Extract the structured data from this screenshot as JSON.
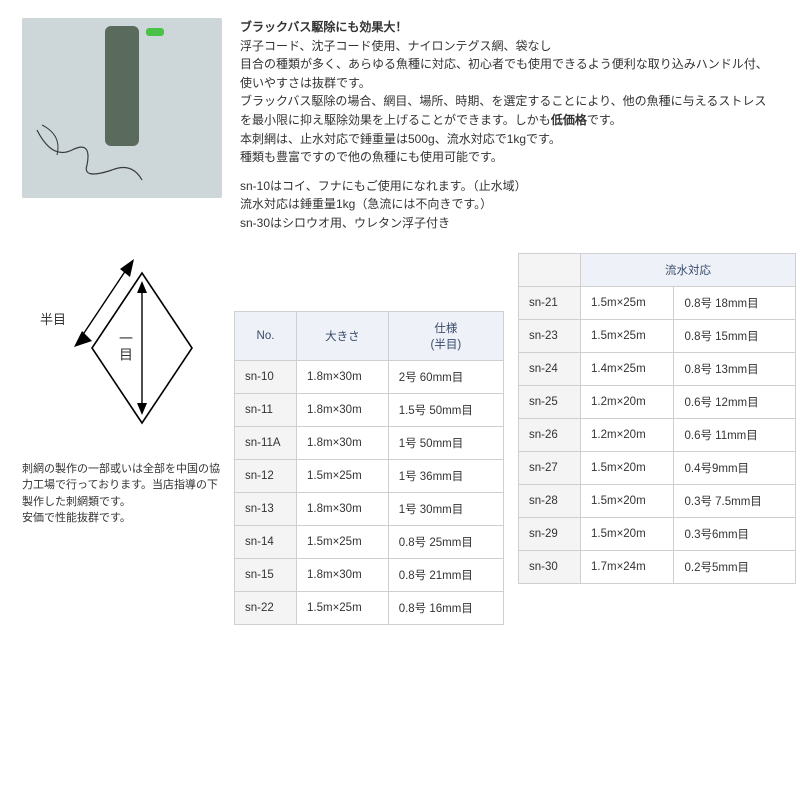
{
  "description": {
    "headline": "ブラックバス駆除にも効果大！",
    "para1": "浮子コード、沈子コード使用、ナイロンテグス網、袋なし\n目合の種類が多く、あらゆる魚種に対応、初心者でも使用できるよう便利な取り込みハンドル付、使いやすさは抜群です。\nブラックバス駆除の場合、網目、場所、時期、を選定することにより、他の魚種に与えるストレスを最小限に抑え駆除効果を上げることができます。しかも",
    "low_price": "低価格",
    "para1_tail": "です。\n本刺網は、止水対応で錘重量は500g、流水対応で1kgです。\n種類も豊富ですので他の魚種にも使用可能です。",
    "para2": "sn-10はコイ、フナにもご使用になれます。（止水域）\n流水対応は錘重量1kg（急流には不向きです。）\nsn-30はシロウオ用、ウレタン浮子付き"
  },
  "diagram": {
    "label_half": "半目",
    "label_full": "一目"
  },
  "note": "刺網の製作の一部或いは全部を中国の協力工場で行っております。当店指導の下製作した刺網類です。\n安価で性能抜群です。",
  "table1": {
    "headers": [
      "No.",
      "大きさ",
      "仕様\n(半目)"
    ],
    "rows": [
      [
        "sn-10",
        "1.8m×30m",
        "2号 60mm目"
      ],
      [
        "sn-11",
        "1.8m×30m",
        "1.5号 50mm目"
      ],
      [
        "sn-11A",
        "1.8m×30m",
        "1号 50mm目"
      ],
      [
        "sn-12",
        "1.5m×25m",
        "1号 36mm目"
      ],
      [
        "sn-13",
        "1.8m×30m",
        "1号 30mm目"
      ],
      [
        "sn-14",
        "1.5m×25m",
        "0.8号 25mm目"
      ],
      [
        "sn-15",
        "1.8m×30m",
        "0.8号 21mm目"
      ],
      [
        "sn-22",
        "1.5m×25m",
        "0.8号 16mm目"
      ]
    ],
    "col_widths": [
      "62px",
      "94px",
      "auto"
    ]
  },
  "table2": {
    "flow_header": "流水対応",
    "rows": [
      [
        "sn-21",
        "1.5m×25m",
        "0.8号 18mm目"
      ],
      [
        "sn-23",
        "1.5m×25m",
        "0.8号 15mm目"
      ],
      [
        "sn-24",
        "1.4m×25m",
        "0.8号 13mm目"
      ],
      [
        "sn-25",
        "1.2m×20m",
        "0.6号 12mm目"
      ],
      [
        "sn-26",
        "1.2m×20m",
        "0.6号 11mm目"
      ],
      [
        "sn-27",
        "1.5m×20m",
        "0.4号9mm目"
      ],
      [
        "sn-28",
        "1.5m×20m",
        "0.3号 7.5mm目"
      ],
      [
        "sn-29",
        "1.5m×20m",
        "0.3号6mm目"
      ],
      [
        "sn-30",
        "1.7m×24m",
        "0.2号5mm目"
      ]
    ],
    "col_widths": [
      "62px",
      "94px",
      "auto"
    ]
  },
  "colors": {
    "text": "#333333",
    "border": "#cfcfcf",
    "th_bg": "#eef2f8",
    "td0_bg": "#f4f4f4",
    "photo_bg": "#cdd6d9"
  }
}
